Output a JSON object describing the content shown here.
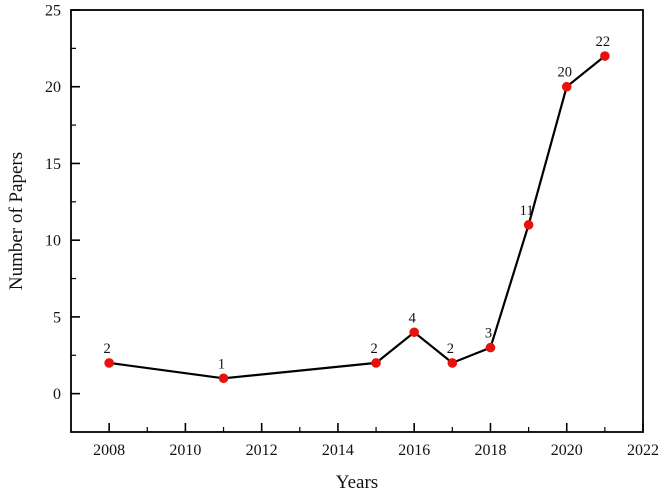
{
  "figure": {
    "background": "#ffffff",
    "frame_color": "#000000"
  },
  "chart_data": {
    "type": "line",
    "title": "",
    "xlabel": "Years",
    "ylabel": "Number of Papers",
    "x": [
      2008,
      2011,
      2015,
      2016,
      2017,
      2018,
      2019,
      2020,
      2021
    ],
    "values": [
      2,
      1,
      2,
      4,
      2,
      3,
      11,
      20,
      22
    ],
    "point_labels": [
      "2",
      "1",
      "2",
      "4",
      "2",
      "3",
      "11",
      "20",
      "22"
    ],
    "xlim": [
      2007,
      2022
    ],
    "ylim": [
      -2.5,
      25
    ],
    "x_major_ticks": [
      2008,
      2010,
      2012,
      2014,
      2016,
      2018,
      2020,
      2022
    ],
    "x_major_tick_labels": [
      "2008",
      "2010",
      "2012",
      "2014",
      "2016",
      "2018",
      "2020",
      "2022"
    ],
    "x_minor_ticks": [
      2009,
      2011,
      2013,
      2015,
      2017,
      2019,
      2021
    ],
    "y_major_ticks": [
      0,
      5,
      10,
      15,
      20,
      25
    ],
    "y_major_tick_labels": [
      "0",
      "5",
      "10",
      "15",
      "20",
      "25"
    ],
    "y_minor_ticks": [
      2.5,
      7.5,
      12.5,
      17.5,
      22.5
    ],
    "grid": false,
    "legend": "none",
    "line_color": "#000000",
    "marker_color": "#e8120c",
    "marker_shape": "circle"
  }
}
